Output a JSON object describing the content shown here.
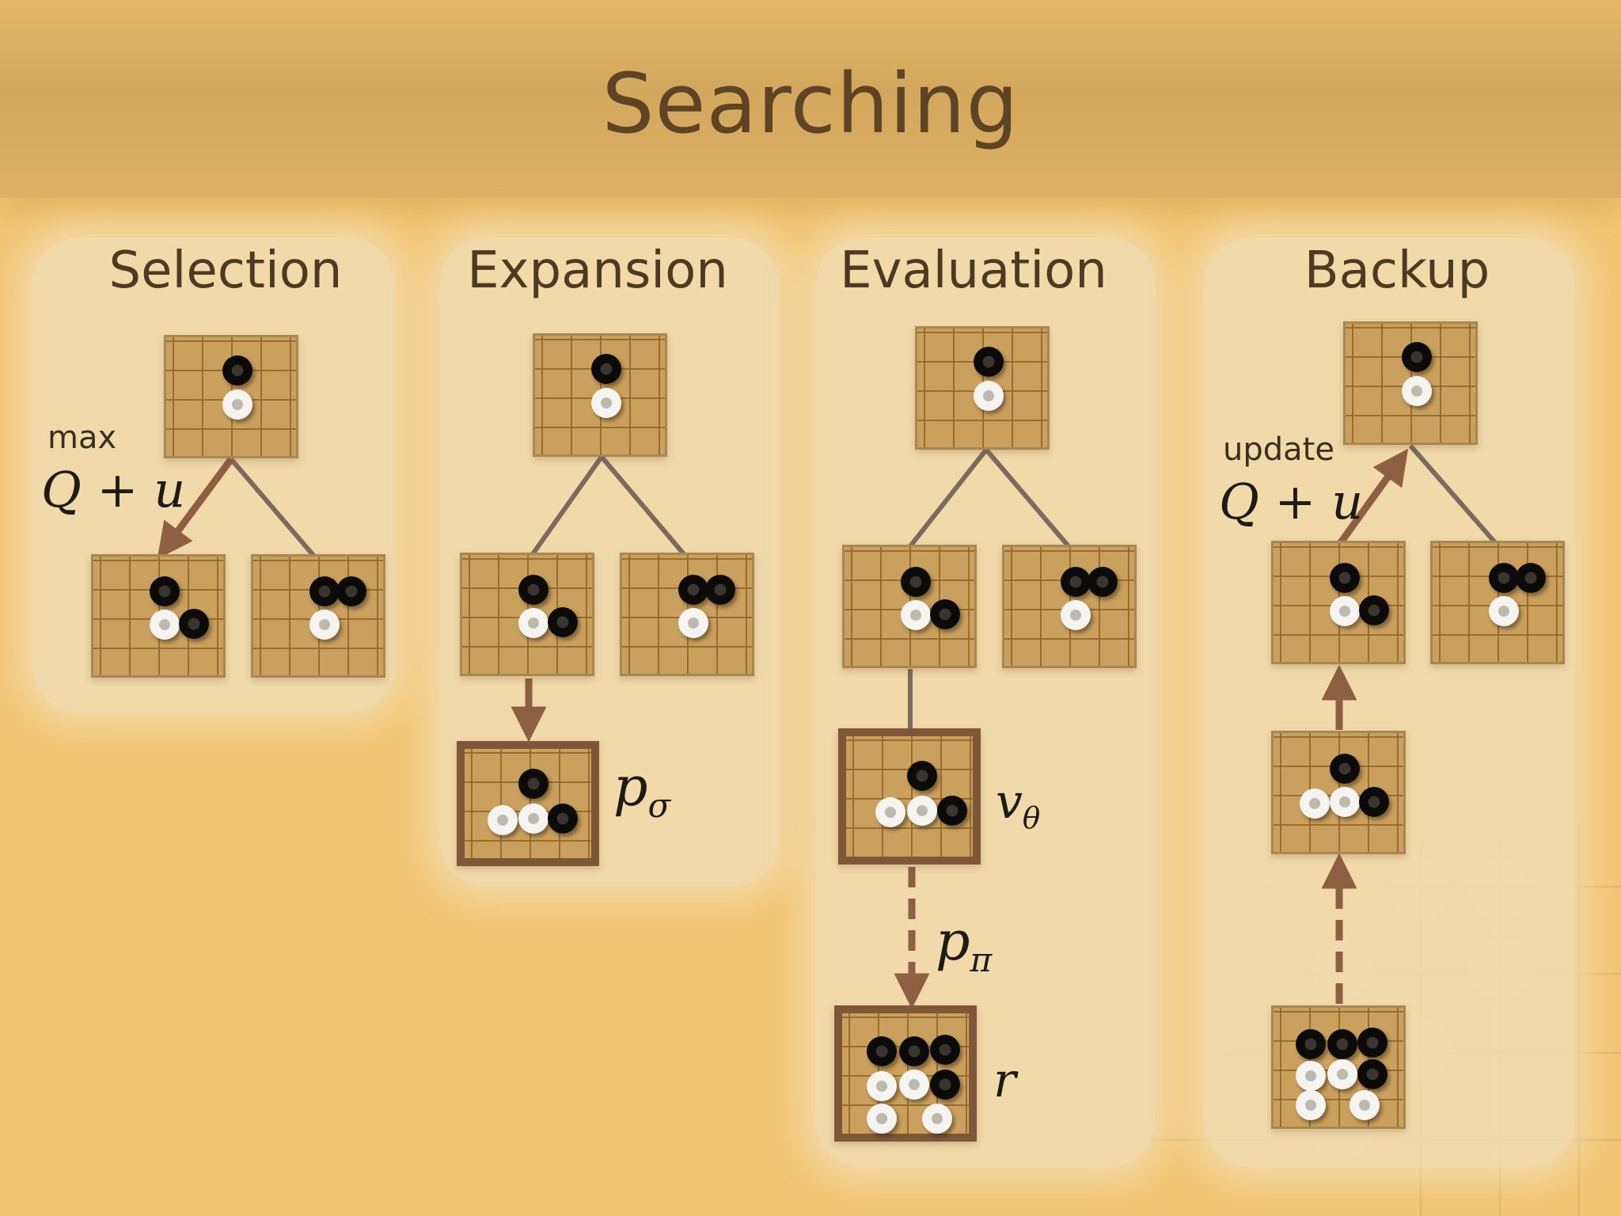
{
  "title": "Searching",
  "stages": {
    "selection": "Selection",
    "expansion": "Expansion",
    "evaluation": "Evaluation",
    "backup": "Backup"
  },
  "labels": {
    "max": "max",
    "update": "update",
    "q_plus_u": "Q + u",
    "p_sigma_base": "p",
    "p_sigma_sub": "σ",
    "v_theta_base": "v",
    "v_theta_sub": "θ",
    "p_pi_base": "p",
    "p_pi_sub": "π",
    "r": "r"
  },
  "colors": {
    "background": "#f2c673",
    "panel": "#f1dcb0",
    "title_text": "#5e4424",
    "board": "#c9a05d",
    "highlight_border": "#7e5638",
    "edge_line": "#7d6a5e",
    "arrow": "#8d5f43"
  },
  "icons": [
    "go-board-icon",
    "black-stone-icon",
    "white-stone-icon",
    "arrow-icon"
  ]
}
